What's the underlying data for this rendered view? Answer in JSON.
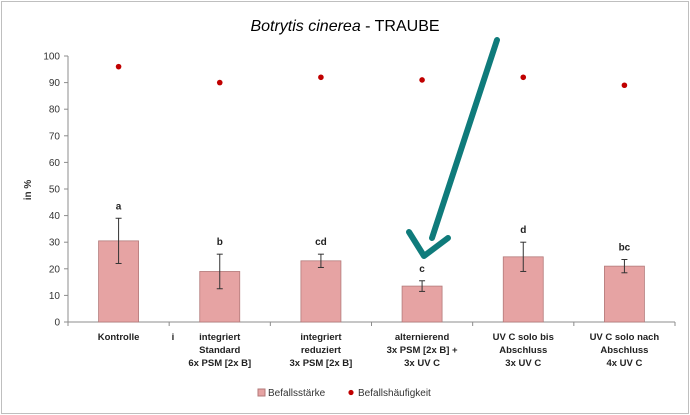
{
  "chart_data": {
    "type": "bar",
    "title_italic": "Botrytis cinerea",
    "title_rest": " - TRAUBE",
    "ylabel": "in %",
    "ylim": [
      0,
      100
    ],
    "yticks": [
      "0",
      "10",
      "20",
      "30",
      "40",
      "50",
      "60",
      "70",
      "80",
      "90",
      "100"
    ],
    "categories": [
      [
        "Kontrolle"
      ],
      [
        "integriert",
        "Standard",
        "6x PSM [2x B]"
      ],
      [
        "integriert",
        "reduziert",
        "3x PSM [2x B]"
      ],
      [
        "alternierend",
        "3x PSM [2x B] +",
        "3x UV C"
      ],
      [
        "UV C solo bis",
        "Abschluss",
        "3x UV C"
      ],
      [
        "UV C solo nach",
        "Abschluss",
        "4x UV C"
      ]
    ],
    "stray_mark": "i",
    "series": [
      {
        "name": "Befallsstärke",
        "type": "bar",
        "color": "#e6a3a3",
        "values": [
          30.5,
          19,
          23,
          13.5,
          24.5,
          21
        ],
        "errors": [
          8.5,
          6.5,
          2.5,
          2,
          5.5,
          2.5
        ],
        "labels": [
          "a",
          "b",
          "cd",
          "c",
          "d",
          "bc"
        ]
      },
      {
        "name": "Befallshäufigkeit",
        "type": "scatter",
        "color": "#c00000",
        "values": [
          96,
          90,
          92,
          91,
          92,
          89
        ]
      }
    ],
    "grid": false,
    "legend_position": "bottom",
    "annotation_arrow_color": "#0f7b7b"
  }
}
